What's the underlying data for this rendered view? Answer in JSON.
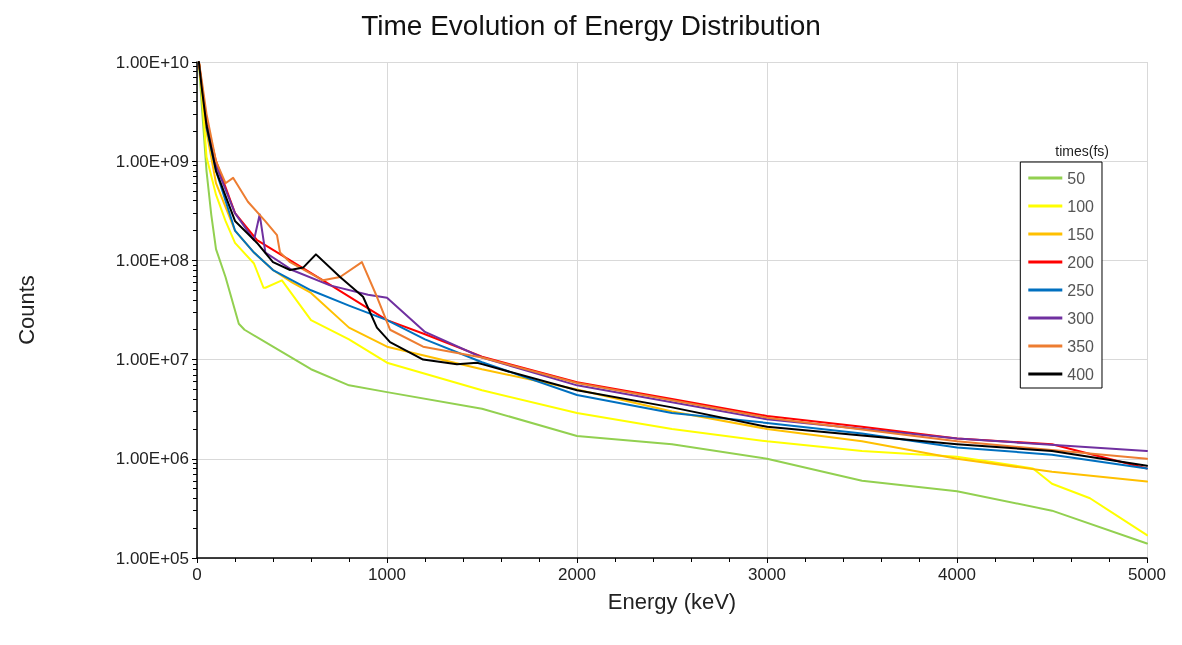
{
  "chart_data": {
    "type": "line",
    "title": "Time Evolution of Energy Distribution",
    "xlabel": "Energy (keV)",
    "ylabel": "Counts",
    "legend_title": "times(fs)",
    "xlim": [
      0,
      5000
    ],
    "xticks": [
      0,
      1000,
      2000,
      3000,
      4000,
      5000
    ],
    "ylim": [
      100000,
      10000000000
    ],
    "yticks": [
      {
        "value": 100000,
        "label": "1.00E+05"
      },
      {
        "value": 1000000,
        "label": "1.00E+06"
      },
      {
        "value": 10000000,
        "label": "1.00E+07"
      },
      {
        "value": 100000000,
        "label": "1.00E+08"
      },
      {
        "value": 1000000000,
        "label": "1.00E+09"
      },
      {
        "value": 10000000000,
        "label": "1.00E+10"
      }
    ],
    "log": "y",
    "grid": true,
    "legend": "top right",
    "marker": "none",
    "line_style": "solid",
    "series": [
      {
        "name": "50",
        "color": "#92d050",
        "x": [
          10,
          25,
          50,
          75,
          100,
          150,
          220,
          250,
          400,
          600,
          800,
          1000,
          1500,
          2000,
          2500,
          3000,
          3500,
          4000,
          4500,
          5000
        ],
        "values": [
          10000000000,
          3700000000,
          800000000,
          290000000,
          130000000,
          68000000,
          23000000,
          20000000,
          13500000,
          8000000,
          5500000,
          4700000,
          3200000,
          1700000,
          1400000,
          1000000,
          600000,
          470000,
          300000,
          140000
        ]
      },
      {
        "name": "100",
        "color": "#ffff00",
        "x": [
          10,
          25,
          50,
          100,
          150,
          200,
          300,
          350,
          360,
          447,
          600,
          800,
          1000,
          1500,
          2000,
          2500,
          3000,
          3500,
          4000,
          4400,
          4500,
          4700,
          5000
        ],
        "values": [
          10000000000,
          5000000000,
          1100000000,
          460000000,
          250000000,
          150000000,
          93000000,
          53000000,
          53000000,
          63000000,
          25000000,
          16000000,
          9300000,
          4900000,
          2900000,
          2000000,
          1500000,
          1200000,
          1050000,
          800000,
          560000,
          400000,
          170000
        ]
      },
      {
        "name": "150",
        "color": "#ffc000",
        "x": [
          10,
          25,
          50,
          100,
          200,
          300,
          400,
          500,
          600,
          800,
          1000,
          1500,
          2000,
          2500,
          3000,
          3500,
          4000,
          4500,
          5000
        ],
        "values": [
          10000000000,
          5500000000,
          2000000000,
          600000000,
          200000000,
          120000000,
          80000000,
          60000000,
          47000000,
          21000000,
          13500000,
          8000000,
          5000000,
          3000000,
          2000000,
          1500000,
          1000000,
          740000,
          590000
        ]
      },
      {
        "name": "200",
        "color": "#ff0000",
        "x": [
          10,
          25,
          50,
          100,
          200,
          316,
          663,
          1000,
          1200,
          1500,
          2000,
          2500,
          3000,
          3500,
          4000,
          4500,
          5000
        ],
        "values": [
          10000000000,
          6000000000,
          2500000000,
          1000000000,
          300000000,
          160000000,
          63000000,
          25000000,
          18000000,
          10700000,
          5900000,
          4000000,
          2700000,
          2100000,
          1600000,
          1400000,
          800000
        ]
      },
      {
        "name": "250",
        "color": "#0070c0",
        "x": [
          50,
          100,
          200,
          300,
          400,
          600,
          800,
          1000,
          1200,
          1500,
          2000,
          2500,
          3000,
          3500,
          4000,
          4500,
          5000
        ],
        "values": [
          2200000000,
          800000000,
          200000000,
          120000000,
          80000000,
          50000000,
          35000000,
          25000000,
          16000000,
          9400000,
          4400000,
          2900000,
          2300000,
          1800000,
          1300000,
          1100000,
          800000
        ]
      },
      {
        "name": "300",
        "color": "#7030a0",
        "x": [
          50,
          100,
          200,
          300,
          330,
          360,
          500,
          700,
          900,
          1000,
          1200,
          1500,
          2000,
          3000,
          4000,
          5000
        ],
        "values": [
          2500000000,
          900000000,
          300000000,
          160000000,
          290000000,
          120000000,
          80000000,
          56000000,
          45000000,
          42000000,
          19000000,
          10500000,
          5500000,
          2500000,
          1600000,
          1200000
        ]
      },
      {
        "name": "350",
        "color": "#ed7d31",
        "x": [
          10,
          25,
          50,
          100,
          150,
          190,
          268,
          358,
          421,
          437,
          490,
          663,
          753,
          868,
          947,
          1016,
          1190,
          1500,
          2000,
          3000,
          4000,
          5000
        ],
        "values": [
          10000000000,
          6500000000,
          3000000000,
          1000000000,
          600000000,
          680000000,
          390000000,
          250000000,
          180000000,
          120000000,
          96000000,
          63000000,
          68000000,
          96000000,
          43000000,
          20000000,
          13500000,
          10500000,
          5800000,
          2600000,
          1500000,
          1000000
        ]
      },
      {
        "name": "400",
        "color": "#000000",
        "x": [
          10,
          25,
          50,
          100,
          200,
          316,
          400,
          490,
          560,
          626,
          753,
          874,
          947,
          1016,
          1190,
          1368,
          1474,
          1500,
          2000,
          2500,
          3000,
          4000,
          4500,
          5000
        ],
        "values": [
          10000000000,
          5500000000,
          2300000000,
          800000000,
          250000000,
          150000000,
          96000000,
          80000000,
          85000000,
          115000000,
          68000000,
          43000000,
          21000000,
          15000000,
          10000000,
          9000000,
          9300000,
          9000000,
          4900000,
          3300000,
          2100000,
          1400000,
          1200000,
          850000
        ]
      }
    ]
  }
}
